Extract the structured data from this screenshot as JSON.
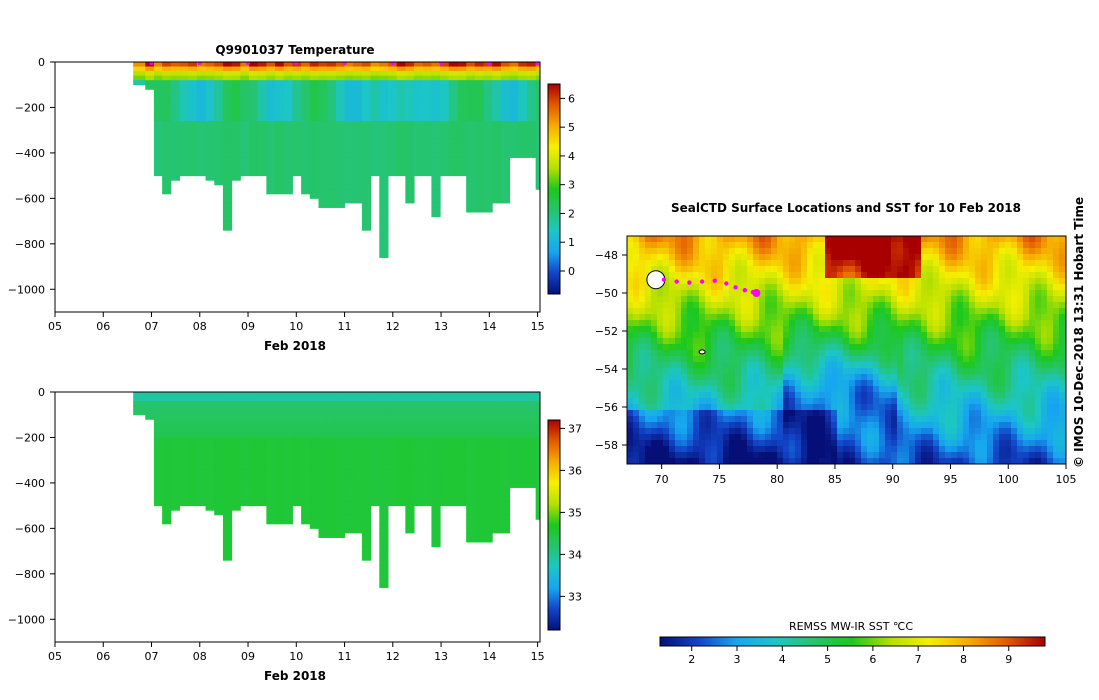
{
  "colors": {
    "temp_scale": [
      "#060f78",
      "#1245c8",
      "#17a6f0",
      "#1cc6c6",
      "#26c46c",
      "#1cc81c",
      "#b6e000",
      "#f6f000",
      "#f6ac00",
      "#e45a00",
      "#a80000"
    ],
    "sal_scale": [
      "#060f78",
      "#1245c8",
      "#17a6f0",
      "#1cc6c6",
      "#26c46c",
      "#1cc81c",
      "#b6e000",
      "#f6f000",
      "#f6ac00",
      "#e45a00",
      "#a80000"
    ],
    "sst_scale": [
      "#060f78",
      "#1245c8",
      "#17a6f0",
      "#1cc6c6",
      "#26c46c",
      "#1cc81c",
      "#b6e000",
      "#f6f000",
      "#f6ac00",
      "#e45a00",
      "#a80000"
    ],
    "track": "#ff00ff"
  },
  "chart_data": [
    {
      "id": "temperature",
      "type": "heatmap",
      "title": "Q9901037  Temperature",
      "xlabel": "Feb 2018",
      "ylabel": "",
      "x_ticks": [
        "05",
        "06",
        "07",
        "08",
        "09",
        "10",
        "11",
        "12",
        "13",
        "14",
        "15"
      ],
      "xlim": [
        5,
        15.05
      ],
      "ylim": [
        -1100,
        0
      ],
      "y_ticks": [
        "0",
        "−200",
        "−400",
        "−600",
        "−800",
        "−1000"
      ],
      "y_tick_values": [
        0,
        -200,
        -400,
        -600,
        -800,
        -1000
      ],
      "colorbar_ticks": [
        "0",
        "1",
        "2",
        "3",
        "4",
        "5",
        "6"
      ],
      "colorbar_range": [
        -0.8,
        6.5
      ],
      "profile_times": [
        6.62,
        6.87,
        7.05,
        7.22,
        7.4,
        7.58,
        7.76,
        7.94,
        8.12,
        8.3,
        8.48,
        8.66,
        8.84,
        9.02,
        9.2,
        9.38,
        9.56,
        9.74,
        9.92,
        10.1,
        10.28,
        10.46,
        10.64,
        10.82,
        11,
        11.18,
        11.36,
        11.54,
        11.72,
        11.9,
        12.08,
        12.26,
        12.44,
        12.62,
        12.8,
        12.98,
        13.16,
        13.34,
        13.52,
        13.7,
        13.88,
        14.06,
        14.24,
        14.42,
        14.6,
        14.78,
        14.96
      ],
      "profile_depths": [
        90,
        105,
        500,
        570,
        520,
        500,
        490,
        490,
        520,
        530,
        740,
        520,
        500,
        500,
        500,
        580,
        580,
        580,
        500,
        570,
        600,
        640,
        640,
        640,
        620,
        620,
        740,
        500,
        850,
        500,
        500,
        620,
        500,
        500,
        665,
        500,
        500,
        500,
        660,
        660,
        660,
        610,
        610,
        420,
        420,
        420,
        550
      ],
      "layer_depths": [
        40,
        100,
        160,
        260
      ],
      "layer_values": [
        5.6,
        3.8,
        2.2,
        2.0
      ]
    },
    {
      "id": "salinity",
      "type": "heatmap",
      "title": "",
      "xlabel": "Feb 2018",
      "ylabel": "",
      "x_ticks": [
        "05",
        "06",
        "07",
        "08",
        "09",
        "10",
        "11",
        "12",
        "13",
        "14",
        "15"
      ],
      "xlim": [
        5,
        15.05
      ],
      "ylim": [
        -1100,
        0
      ],
      "y_ticks": [
        "0",
        "−200",
        "−400",
        "−600",
        "−800",
        "−1000"
      ],
      "y_tick_values": [
        0,
        -200,
        -400,
        -600,
        -800,
        -1000
      ],
      "colorbar_ticks": [
        "33",
        "34",
        "35",
        "36",
        "37"
      ],
      "colorbar_range": [
        32.2,
        37.2
      ],
      "layer_depths": [
        60,
        200,
        400
      ],
      "layer_values": [
        33.9,
        34.3,
        34.55
      ]
    },
    {
      "id": "sst_map",
      "type": "heatmap",
      "title": "SealCTD Surface Locations and SST for 10 Feb 2018",
      "xlabel": "",
      "ylabel": "",
      "x_ticks": [
        "70",
        "75",
        "80",
        "85",
        "90",
        "95",
        "100",
        "105"
      ],
      "x_tick_values": [
        70,
        75,
        80,
        85,
        90,
        95,
        100,
        105
      ],
      "xlim": [
        67,
        105
      ],
      "ylim": [
        -59,
        -47
      ],
      "y_ticks": [
        "−48",
        "−50",
        "−52",
        "−54",
        "−56",
        "−58"
      ],
      "y_tick_values": [
        -48,
        -50,
        -52,
        -54,
        -56,
        -58
      ],
      "colorbar_label": "REMSS MW-IR SST ℃C",
      "colorbar_ticks": [
        "2",
        "3",
        "4",
        "5",
        "6",
        "7",
        "8",
        "9"
      ],
      "colorbar_range": [
        1.3,
        9.8
      ],
      "track_lon": [
        70.2,
        71.3,
        72.4,
        73.5,
        74.6,
        75.6,
        76.4,
        77.2,
        77.9,
        78.2
      ],
      "track_lat": [
        -49.3,
        -49.4,
        -49.45,
        -49.4,
        -49.35,
        -49.5,
        -49.7,
        -49.85,
        -49.95,
        -50.0
      ],
      "side_label": "©  IMOS 10-Dec-2018 13:31 Hobart Time"
    }
  ]
}
